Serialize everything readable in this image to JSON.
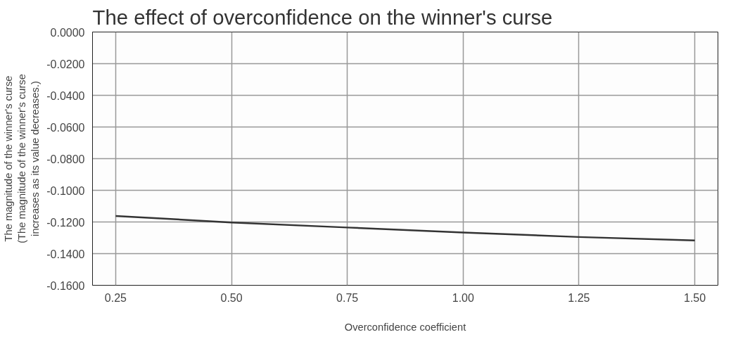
{
  "chart_data": {
    "type": "line",
    "title": "The effect of overconfidence on the winner's curse",
    "xlabel": "Overconfidence coefficient",
    "ylabel": "The magnitude of the winner's curse\n(The magnitude of the winner's curse\nincreases as its value decreases.)",
    "x": [
      0.25,
      0.5,
      0.75,
      1.0,
      1.25,
      1.5
    ],
    "series": [
      {
        "color": "#333333",
        "values": [
          -0.1162,
          -0.1203,
          -0.1235,
          -0.1267,
          -0.1295,
          -0.1317
        ]
      }
    ],
    "xlim": [
      0.2,
      1.55
    ],
    "xticks": [
      {
        "value": 0.25,
        "label": "0.25"
      },
      {
        "value": 0.5,
        "label": "0.50"
      },
      {
        "value": 0.75,
        "label": "0.75"
      },
      {
        "value": 1.0,
        "label": "1.00"
      },
      {
        "value": 1.25,
        "label": "1.25"
      },
      {
        "value": 1.5,
        "label": "1.50"
      }
    ],
    "ylim": [
      -0.16,
      0
    ],
    "yticks": [
      {
        "value": 0,
        "label": "0.0000"
      },
      {
        "value": -0.02,
        "label": "-0.0200"
      },
      {
        "value": -0.04,
        "label": "-0.0400"
      },
      {
        "value": -0.06,
        "label": "-0.0600"
      },
      {
        "value": -0.08,
        "label": "-0.0800"
      },
      {
        "value": -0.1,
        "label": "-0.1000"
      },
      {
        "value": -0.12,
        "label": "-0.1200"
      },
      {
        "value": -0.14,
        "label": "-0.1400"
      },
      {
        "value": -0.16,
        "label": "-0.1600"
      }
    ],
    "grid": true,
    "line_style": "solid"
  }
}
